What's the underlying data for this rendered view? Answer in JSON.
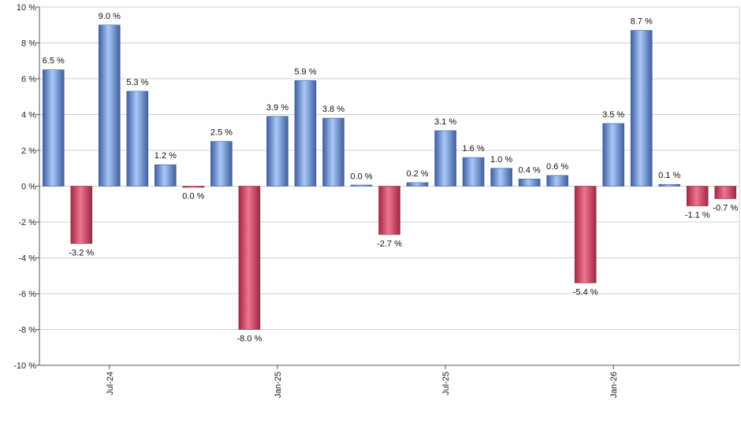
{
  "chart_data": {
    "type": "bar",
    "title": "",
    "xlabel": "",
    "ylabel": "",
    "ylim": [
      -10,
      10
    ],
    "y_ticks": [
      -10,
      -8,
      -6,
      -4,
      -2,
      0,
      2,
      4,
      6,
      8,
      10
    ],
    "y_tick_suffix": " %",
    "grid": true,
    "legend": "none",
    "values": [
      6.5,
      -3.2,
      9.0,
      5.3,
      1.2,
      -0.05,
      2.5,
      -8.0,
      3.9,
      5.9,
      3.8,
      0.04,
      -2.7,
      0.2,
      3.1,
      1.6,
      1.0,
      0.4,
      0.6,
      -5.4,
      3.5,
      8.7,
      0.1,
      -1.1,
      -0.7
    ],
    "labels": [
      "6.5 %",
      "-3.2 %",
      "9.0 %",
      "5.3 %",
      "1.2 %",
      "0.0 %",
      "2.5 %",
      "-8.0 %",
      "3.9 %",
      "5.9 %",
      "3.8 %",
      "0.0 %",
      "-2.7 %",
      "0.2 %",
      "3.1 %",
      "1.6 %",
      "1.0 %",
      "0.4 %",
      "0.6 %",
      "-5.4 %",
      "3.5 %",
      "8.7 %",
      "0.1 %",
      "-1.1 %",
      "-0.7 %"
    ],
    "x_ticks": [
      {
        "label": "Jul-24",
        "index": 2
      },
      {
        "label": "Jan-25",
        "index": 8
      },
      {
        "label": "Jul-25",
        "index": 14
      },
      {
        "label": "Jan-26",
        "index": 20
      }
    ],
    "colors": {
      "positive_dark": "#3f5f9f",
      "positive_light": "#a9c8f8",
      "negative_dark": "#9f2845",
      "negative_light": "#f0748e"
    }
  }
}
